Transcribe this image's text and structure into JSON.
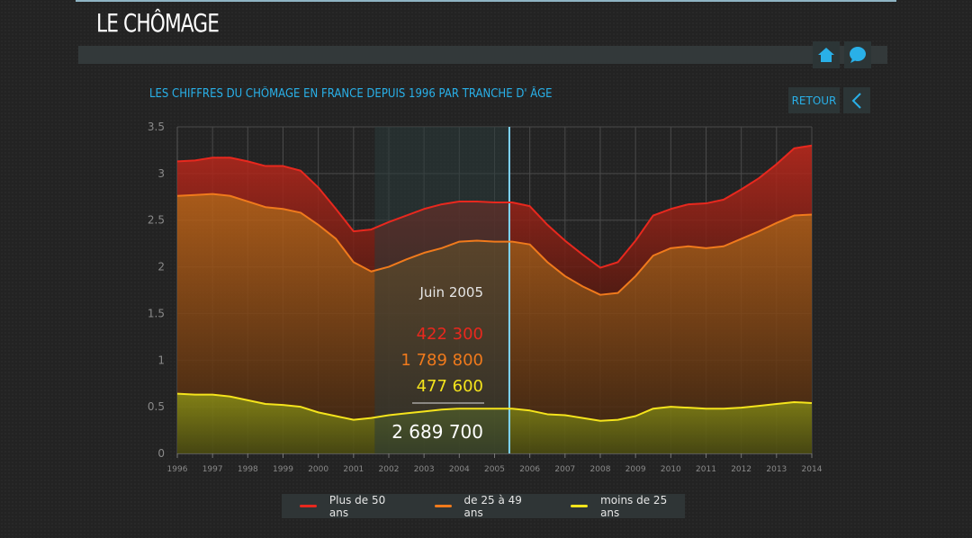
{
  "header": {
    "title": "LE CHÔMAGE"
  },
  "subtitle": "LES CHIFFRES DU CHÔMAGE EN FRANCE DEPUIS 1996 PAR TRANCHE D' ÂGE",
  "buttons": {
    "retour": "RETOUR",
    "home_icon": "home-icon",
    "comment_icon": "speech-bubble-icon",
    "back_icon": "chevron-left-icon"
  },
  "tooltip": {
    "date": "Juin 2005",
    "v50": "422 300",
    "v25_49": "1 789 800",
    "vu25": "477 600",
    "total": "2 689 700"
  },
  "colors": {
    "accent": "#29b0e8",
    "red": "#e8281e",
    "orange": "#f07a1c",
    "yellow": "#f5e41c"
  },
  "chart_data": {
    "type": "area",
    "stacked": true,
    "x": [
      1996,
      1996.5,
      1997,
      1997.5,
      1998,
      1998.5,
      1999,
      1999.5,
      2000,
      2000.5,
      2001,
      2001.5,
      2002,
      2002.5,
      2003,
      2003.5,
      2004,
      2004.5,
      2005,
      2005.5,
      2006,
      2006.5,
      2007,
      2007.5,
      2008,
      2008.5,
      2009,
      2009.5,
      2010,
      2010.5,
      2011,
      2011.5,
      2012,
      2012.5,
      2013,
      2013.5,
      2014
    ],
    "xticks": [
      "1996",
      "1997",
      "1998",
      "1999",
      "2000",
      "2001",
      "2002",
      "2003",
      "2004",
      "2005",
      "2006",
      "2007",
      "2008",
      "2009",
      "2010",
      "2011",
      "2012",
      "2013",
      "2014"
    ],
    "yticks": [
      "0",
      "0.5",
      "1",
      "1.5",
      "2",
      "2.5",
      "3",
      "3.5"
    ],
    "ylim": [
      0,
      3.5
    ],
    "xlim": [
      1996,
      2014
    ],
    "grid": true,
    "legend_position": "bottom",
    "series": [
      {
        "name": "moins de 25 ans",
        "color": "#f5e41c",
        "cumulative": [
          0.64,
          0.63,
          0.63,
          0.61,
          0.57,
          0.53,
          0.52,
          0.5,
          0.44,
          0.4,
          0.36,
          0.38,
          0.41,
          0.43,
          0.45,
          0.47,
          0.48,
          0.48,
          0.48,
          0.48,
          0.46,
          0.42,
          0.41,
          0.38,
          0.35,
          0.36,
          0.4,
          0.48,
          0.5,
          0.49,
          0.48,
          0.48,
          0.49,
          0.51,
          0.53,
          0.55,
          0.54
        ]
      },
      {
        "name": "de 25 à 49 ans",
        "color": "#f07a1c",
        "cumulative": [
          2.76,
          2.77,
          2.78,
          2.76,
          2.7,
          2.64,
          2.62,
          2.58,
          2.45,
          2.3,
          2.05,
          1.95,
          2.0,
          2.08,
          2.15,
          2.2,
          2.27,
          2.28,
          2.27,
          2.27,
          2.24,
          2.05,
          1.9,
          1.79,
          1.7,
          1.72,
          1.9,
          2.12,
          2.2,
          2.22,
          2.2,
          2.22,
          2.3,
          2.38,
          2.47,
          2.55,
          2.56
        ]
      },
      {
        "name": "Plus de 50 ans",
        "color": "#e8281e",
        "cumulative": [
          3.13,
          3.14,
          3.17,
          3.17,
          3.13,
          3.08,
          3.08,
          3.03,
          2.85,
          2.62,
          2.38,
          2.4,
          2.48,
          2.55,
          2.62,
          2.67,
          2.7,
          2.7,
          2.69,
          2.69,
          2.65,
          2.45,
          2.28,
          2.13,
          1.99,
          2.05,
          2.28,
          2.55,
          2.62,
          2.67,
          2.68,
          2.72,
          2.83,
          2.95,
          3.1,
          3.27,
          3.3
        ]
      }
    ],
    "highlight": {
      "x": 2005.42,
      "label": "Juin 2005"
    }
  }
}
